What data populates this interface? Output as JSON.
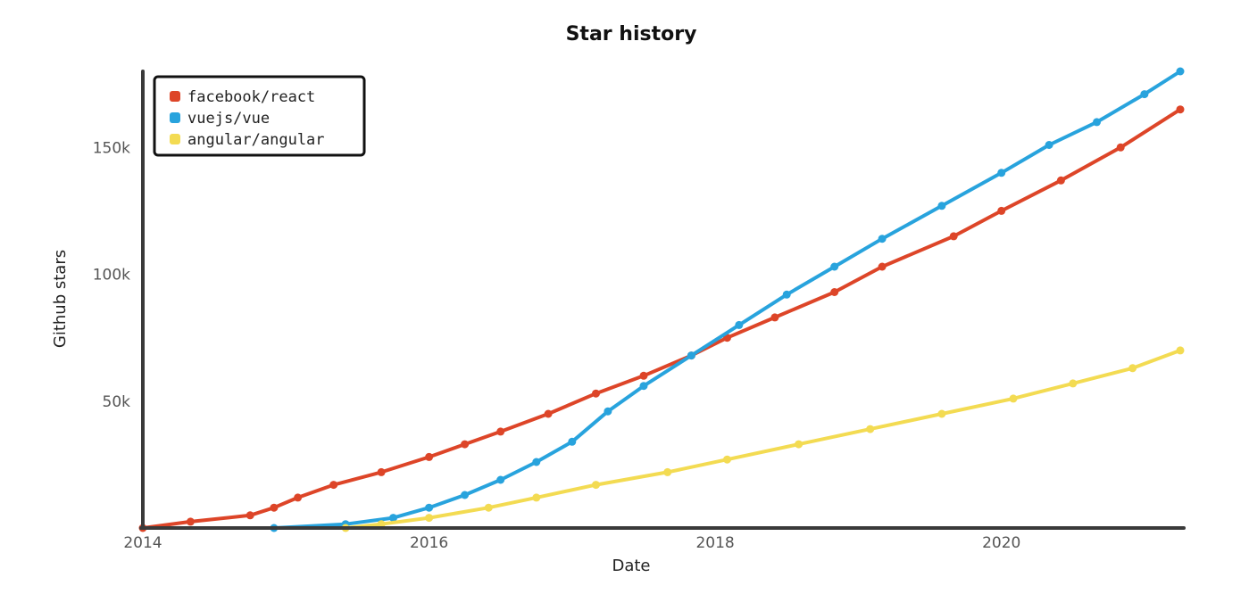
{
  "chart_data": {
    "type": "line",
    "title": "Star history",
    "xlabel": "Date",
    "ylabel": "Github stars",
    "x_ticks": [
      "2014",
      "2016",
      "2018",
      "2020"
    ],
    "y_ticks": [
      "50k",
      "100k",
      "150k"
    ],
    "x_range": [
      "2014-01",
      "2021-04"
    ],
    "y_range": [
      0,
      180000
    ],
    "grid": false,
    "legend_position": "top-left",
    "series": [
      {
        "name": "facebook/react",
        "color": "#dd4528",
        "points": [
          [
            "2014-01",
            0
          ],
          [
            "2014-05",
            2500
          ],
          [
            "2014-10",
            5000
          ],
          [
            "2014-12",
            8000
          ],
          [
            "2015-02",
            12000
          ],
          [
            "2015-05",
            17000
          ],
          [
            "2015-09",
            22000
          ],
          [
            "2016-01",
            28000
          ],
          [
            "2016-04",
            33000
          ],
          [
            "2016-07",
            38000
          ],
          [
            "2016-11",
            45000
          ],
          [
            "2017-03",
            53000
          ],
          [
            "2017-07",
            60000
          ],
          [
            "2017-11",
            68000
          ],
          [
            "2018-02",
            75000
          ],
          [
            "2018-06",
            83000
          ],
          [
            "2018-11",
            93000
          ],
          [
            "2019-03",
            103000
          ],
          [
            "2019-09",
            115000
          ],
          [
            "2020-01",
            125000
          ],
          [
            "2020-06",
            137000
          ],
          [
            "2020-11",
            150000
          ],
          [
            "2021-04",
            165000
          ]
        ]
      },
      {
        "name": "vuejs/vue",
        "color": "#28a3dd",
        "points": [
          [
            "2014-12",
            0
          ],
          [
            "2015-06",
            1500
          ],
          [
            "2015-10",
            4000
          ],
          [
            "2016-01",
            8000
          ],
          [
            "2016-04",
            13000
          ],
          [
            "2016-07",
            19000
          ],
          [
            "2016-10",
            26000
          ],
          [
            "2017-01",
            34000
          ],
          [
            "2017-04",
            46000
          ],
          [
            "2017-07",
            56000
          ],
          [
            "2017-11",
            68000
          ],
          [
            "2018-03",
            80000
          ],
          [
            "2018-07",
            92000
          ],
          [
            "2018-11",
            103000
          ],
          [
            "2019-03",
            114000
          ],
          [
            "2019-08",
            127000
          ],
          [
            "2020-01",
            140000
          ],
          [
            "2020-05",
            151000
          ],
          [
            "2020-09",
            160000
          ],
          [
            "2021-01",
            171000
          ],
          [
            "2021-04",
            180000
          ]
        ]
      },
      {
        "name": "angular/angular",
        "color": "#f3db52",
        "points": [
          [
            "2015-06",
            0
          ],
          [
            "2015-09",
            1500
          ],
          [
            "2016-01",
            4000
          ],
          [
            "2016-06",
            8000
          ],
          [
            "2016-10",
            12000
          ],
          [
            "2017-03",
            17000
          ],
          [
            "2017-09",
            22000
          ],
          [
            "2018-02",
            27000
          ],
          [
            "2018-08",
            33000
          ],
          [
            "2019-02",
            39000
          ],
          [
            "2019-08",
            45000
          ],
          [
            "2020-02",
            51000
          ],
          [
            "2020-07",
            57000
          ],
          [
            "2020-12",
            63000
          ],
          [
            "2021-04",
            70000
          ]
        ]
      }
    ]
  }
}
